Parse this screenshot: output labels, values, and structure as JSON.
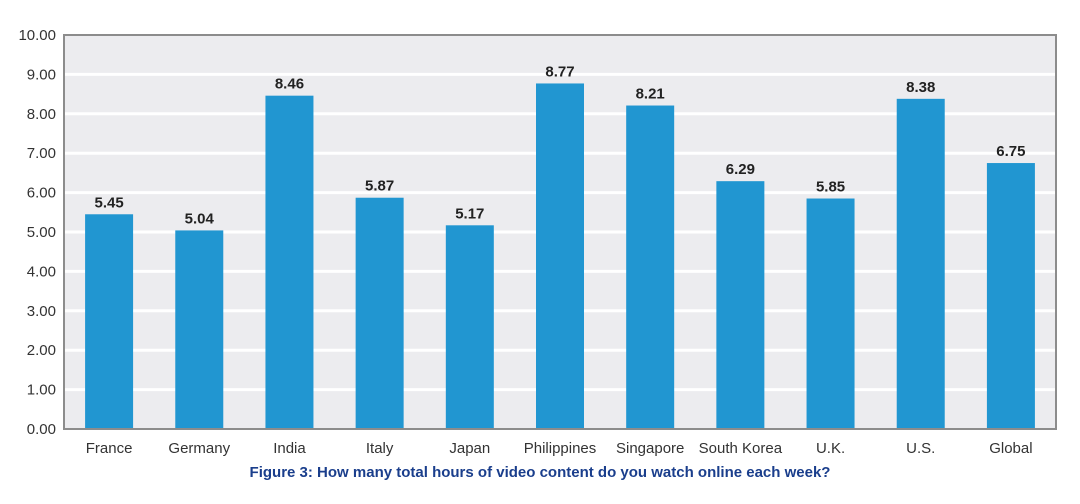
{
  "chart_data": {
    "type": "bar",
    "categories": [
      "France",
      "Germany",
      "India",
      "Italy",
      "Japan",
      "Philippines",
      "Singapore",
      "South Korea",
      "U.K.",
      "U.S.",
      "Global"
    ],
    "values": [
      5.45,
      5.04,
      8.46,
      5.87,
      5.17,
      8.77,
      8.21,
      6.29,
      5.85,
      8.38,
      6.75
    ],
    "data_labels": [
      "5.45",
      "5.04",
      "8.46",
      "5.87",
      "5.17",
      "8.77",
      "8.21",
      "6.29",
      "5.85",
      "8.38",
      "6.75"
    ],
    "y_ticks": [
      "0.00",
      "1.00",
      "2.00",
      "3.00",
      "4.00",
      "5.00",
      "6.00",
      "7.00",
      "8.00",
      "9.00",
      "10.00"
    ],
    "title": "Figure 3: How many total hours of video content do you watch online each week?",
    "xlabel": "",
    "ylabel": "",
    "ylim": [
      0,
      10
    ],
    "grid": true,
    "legend": "none",
    "colors": {
      "bar": "#2196d1",
      "plot_background": "#ececef",
      "gridline": "#ffffff",
      "frame": "#8c8c8c",
      "caption": "#1a3e8c"
    }
  }
}
